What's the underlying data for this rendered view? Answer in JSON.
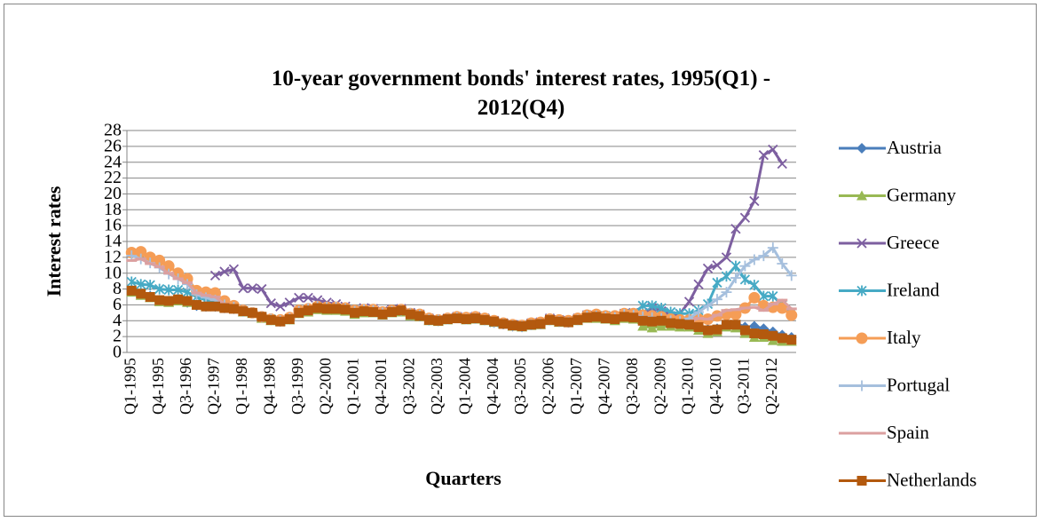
{
  "chart_data": {
    "type": "line",
    "title": "10-year government bonds' interest rates, 1995(Q1) - 2012(Q4)",
    "x_label": "Quarters",
    "y_label": "Interest rates",
    "categories": [
      "Q1-1995",
      null,
      null,
      "Q4-1995",
      null,
      null,
      "Q3-1996",
      null,
      null,
      "Q2-1997",
      null,
      null,
      "Q1-1998",
      null,
      null,
      "Q4-1998",
      null,
      null,
      "Q3-1999",
      null,
      null,
      "Q2-2000",
      null,
      null,
      "Q1-2001",
      null,
      null,
      "Q4-2001",
      null,
      null,
      "Q3-2002",
      null,
      null,
      "Q2-2003",
      null,
      null,
      "Q1-2004",
      null,
      null,
      "Q4-2004",
      null,
      null,
      "Q3-2005",
      null,
      null,
      "Q2-2006",
      null,
      null,
      "Q1-2007",
      null,
      null,
      "Q4-2007",
      null,
      null,
      "Q3-2008",
      null,
      null,
      "Q2-2009",
      null,
      null,
      "Q1-2010",
      null,
      null,
      "Q4-2010",
      null,
      null,
      "Q3-2011",
      null,
      null,
      "Q2-2012",
      null,
      null
    ],
    "ylim": [
      0,
      28
    ],
    "yticks": [
      0,
      2,
      4,
      6,
      8,
      10,
      12,
      14,
      16,
      18,
      20,
      22,
      24,
      26,
      28
    ],
    "grid": true,
    "legend": "right",
    "series": [
      {
        "name": "Austria",
        "color": "#4a7ebb",
        "marker": "diamond",
        "values": [
          7.9,
          7.4,
          7.1,
          6.6,
          6.5,
          6.6,
          6.3,
          5.9,
          5.8,
          5.8,
          5.6,
          5.5,
          5.2,
          5.0,
          4.5,
          4.1,
          3.9,
          4.2,
          5.0,
          5.3,
          5.7,
          5.6,
          5.6,
          5.5,
          5.1,
          5.3,
          5.2,
          4.9,
          5.2,
          5.3,
          4.8,
          4.6,
          4.1,
          4.0,
          4.2,
          4.4,
          4.2,
          4.3,
          4.1,
          3.8,
          3.6,
          3.3,
          3.2,
          3.5,
          3.6,
          4.1,
          3.9,
          3.8,
          4.1,
          4.5,
          4.5,
          4.4,
          4.2,
          4.6,
          4.5,
          4.4,
          4.3,
          4.2,
          3.9,
          3.7,
          3.7,
          3.4,
          2.9,
          3.0,
          3.7,
          3.7,
          3.2,
          3.3,
          3.0,
          2.6,
          2.2,
          1.9
        ]
      },
      {
        "name": "Germany",
        "color": "#98b954",
        "marker": "triangle",
        "values": [
          7.6,
          7.2,
          6.9,
          6.4,
          6.3,
          6.5,
          6.3,
          6.0,
          5.8,
          5.8,
          5.6,
          5.6,
          5.1,
          4.9,
          4.3,
          4.0,
          3.9,
          4.1,
          4.9,
          5.1,
          5.4,
          5.3,
          5.3,
          5.2,
          4.8,
          5.0,
          5.0,
          4.7,
          5.0,
          5.1,
          4.6,
          4.5,
          4.0,
          3.9,
          4.1,
          4.3,
          4.1,
          4.2,
          4.0,
          3.8,
          3.6,
          3.3,
          3.2,
          3.4,
          3.5,
          4.0,
          3.8,
          3.8,
          4.0,
          4.3,
          4.3,
          4.2,
          4.0,
          4.3,
          4.2,
          3.3,
          3.1,
          3.3,
          3.3,
          3.2,
          3.2,
          2.8,
          2.4,
          2.6,
          3.2,
          3.1,
          2.4,
          1.9,
          1.9,
          1.5,
          1.4,
          1.4
        ]
      },
      {
        "name": "Greece",
        "color": "#7d5fa0",
        "marker": "x",
        "values": [
          null,
          null,
          null,
          null,
          null,
          null,
          null,
          null,
          null,
          9.7,
          10.2,
          10.5,
          8.1,
          8.1,
          8.0,
          6.2,
          5.8,
          6.3,
          6.9,
          6.9,
          6.6,
          6.3,
          6.1,
          5.8,
          5.3,
          5.6,
          5.5,
          5.2,
          5.4,
          5.5,
          5.0,
          4.8,
          4.3,
          4.1,
          4.3,
          4.5,
          4.4,
          4.5,
          4.3,
          4.0,
          3.7,
          3.5,
          3.4,
          3.7,
          3.8,
          4.3,
          4.1,
          4.0,
          4.3,
          4.7,
          4.7,
          4.6,
          4.5,
          4.9,
          5.0,
          5.0,
          5.6,
          5.2,
          4.6,
          4.9,
          6.4,
          8.6,
          10.6,
          11.0,
          12.0,
          15.6,
          17.0,
          19.1,
          24.9,
          25.6,
          23.8,
          null
        ]
      },
      {
        "name": "Ireland",
        "color": "#46aac5",
        "marker": "asterisk",
        "values": [
          8.9,
          8.6,
          8.5,
          8.0,
          7.9,
          7.9,
          7.6,
          7.0,
          6.6,
          6.4,
          6.1,
          5.8,
          5.2,
          5.0,
          4.5,
          4.2,
          4.0,
          4.3,
          5.1,
          5.4,
          5.7,
          5.6,
          5.6,
          5.5,
          5.1,
          5.3,
          5.2,
          4.9,
          5.2,
          5.3,
          4.8,
          4.6,
          4.1,
          4.0,
          4.2,
          4.4,
          4.2,
          4.3,
          4.1,
          3.8,
          3.6,
          3.4,
          3.3,
          3.5,
          3.6,
          4.1,
          3.9,
          3.9,
          4.2,
          4.6,
          4.6,
          4.6,
          4.5,
          4.8,
          4.9,
          5.9,
          5.9,
          5.6,
          5.1,
          4.9,
          4.9,
          5.3,
          6.1,
          8.8,
          9.6,
          10.9,
          9.2,
          8.5,
          7.1,
          7.1,
          6.0,
          5.0
        ]
      },
      {
        "name": "Italy",
        "color": "#f59d56",
        "marker": "circle",
        "values": [
          12.6,
          12.7,
          12.0,
          11.6,
          10.9,
          10.0,
          9.3,
          7.8,
          7.6,
          7.5,
          6.5,
          5.9,
          5.3,
          5.0,
          4.5,
          4.2,
          4.1,
          4.4,
          5.3,
          5.5,
          5.8,
          5.7,
          5.7,
          5.6,
          5.3,
          5.4,
          5.4,
          5.1,
          5.3,
          5.4,
          4.9,
          4.8,
          4.3,
          4.1,
          4.3,
          4.5,
          4.4,
          4.5,
          4.3,
          4.0,
          3.7,
          3.5,
          3.4,
          3.7,
          3.8,
          4.2,
          4.1,
          4.0,
          4.3,
          4.7,
          4.8,
          4.6,
          4.6,
          4.9,
          4.9,
          4.7,
          4.6,
          4.5,
          4.2,
          4.1,
          4.1,
          4.2,
          4.2,
          4.6,
          4.8,
          4.8,
          5.6,
          6.9,
          5.9,
          5.7,
          5.6,
          4.7
        ]
      },
      {
        "name": "Portugal",
        "color": "#a5bfdd",
        "marker": "plus",
        "values": [
          12.2,
          11.8,
          11.3,
          10.7,
          9.9,
          9.3,
          8.6,
          7.3,
          6.9,
          6.6,
          6.0,
          5.7,
          5.2,
          5.0,
          4.5,
          4.2,
          4.0,
          4.3,
          5.2,
          5.5,
          5.8,
          5.7,
          5.7,
          5.5,
          5.2,
          5.4,
          5.3,
          5.0,
          5.2,
          5.3,
          4.9,
          4.7,
          4.2,
          4.1,
          4.2,
          4.4,
          4.2,
          4.3,
          4.1,
          3.8,
          3.6,
          3.4,
          3.3,
          3.5,
          3.6,
          4.1,
          3.9,
          3.8,
          4.1,
          4.6,
          4.6,
          4.5,
          4.4,
          4.8,
          4.7,
          4.5,
          4.4,
          4.3,
          4.0,
          3.9,
          4.3,
          5.1,
          5.9,
          6.7,
          7.6,
          9.4,
          10.9,
          11.7,
          12.2,
          13.2,
          11.2,
          9.7
        ]
      },
      {
        "name": "Spain",
        "color": "#dba0a0",
        "marker": "dash",
        "values": [
          11.6,
          11.8,
          11.2,
          10.8,
          10.0,
          9.3,
          8.8,
          7.5,
          7.2,
          7.0,
          6.1,
          5.7,
          5.2,
          5.0,
          4.5,
          4.2,
          4.0,
          4.3,
          5.2,
          5.4,
          5.8,
          5.6,
          5.6,
          5.5,
          5.2,
          5.4,
          5.3,
          5.0,
          5.2,
          5.3,
          4.8,
          4.6,
          4.1,
          4.0,
          4.2,
          4.4,
          4.2,
          4.3,
          4.1,
          3.8,
          3.6,
          3.4,
          3.3,
          3.5,
          3.6,
          4.1,
          3.9,
          3.8,
          4.1,
          4.5,
          4.6,
          4.4,
          4.3,
          4.7,
          4.7,
          4.3,
          4.2,
          4.2,
          3.9,
          3.8,
          3.9,
          4.3,
          4.2,
          4.7,
          5.3,
          5.4,
          5.6,
          5.7,
          5.3,
          6.1,
          6.6,
          5.5
        ]
      },
      {
        "name": "Netherlands",
        "color": "#b3590e",
        "marker": "square",
        "values": [
          7.8,
          7.4,
          7.0,
          6.6,
          6.5,
          6.7,
          6.5,
          6.0,
          5.8,
          5.8,
          5.6,
          5.5,
          5.2,
          5.0,
          4.5,
          4.1,
          3.9,
          4.2,
          5.0,
          5.3,
          5.6,
          5.5,
          5.5,
          5.4,
          5.0,
          5.2,
          5.1,
          4.8,
          5.1,
          5.3,
          4.8,
          4.6,
          4.1,
          4.0,
          4.2,
          4.3,
          4.2,
          4.3,
          4.1,
          3.9,
          3.6,
          3.4,
          3.3,
          3.5,
          3.6,
          4.1,
          3.9,
          3.8,
          4.1,
          4.4,
          4.5,
          4.3,
          4.2,
          4.5,
          4.4,
          4.0,
          3.9,
          4.0,
          3.7,
          3.6,
          3.5,
          3.2,
          2.8,
          2.9,
          3.5,
          3.5,
          2.8,
          2.4,
          2.3,
          2.1,
          1.8,
          1.6
        ]
      }
    ]
  }
}
